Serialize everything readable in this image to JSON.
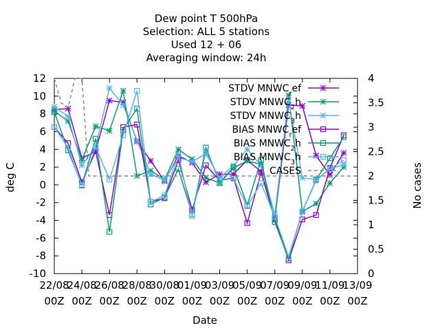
{
  "chart_data": {
    "type": "line",
    "title_lines": [
      "Dew point T 500hPa",
      "Selection: ALL      5 stations",
      "Used  12 + 06",
      "Averaging window: 24h"
    ],
    "xlabel": "Date",
    "ylabel": "deg C",
    "y2label": "No cases",
    "ylim": [
      -10,
      12
    ],
    "y2lim": [
      0,
      4
    ],
    "xlim": [
      0,
      22
    ],
    "yticks": [
      -10,
      -8,
      -6,
      -4,
      -2,
      0,
      2,
      4,
      6,
      8,
      10,
      12
    ],
    "y2ticks": [
      "0",
      "0.5",
      "1",
      "1.5",
      "2",
      "2.5",
      "3",
      "3.5",
      "4"
    ],
    "xticks": [
      {
        "x": 0,
        "line1": "22/08",
        "line2": "00Z"
      },
      {
        "x": 2,
        "line1": "24/08",
        "line2": "00Z"
      },
      {
        "x": 4,
        "line1": "26/08",
        "line2": "00Z"
      },
      {
        "x": 6,
        "line1": "28/08",
        "line2": "00Z"
      },
      {
        "x": 8,
        "line1": "30/08",
        "line2": "00Z"
      },
      {
        "x": 10,
        "line1": "01/09",
        "line2": "00Z"
      },
      {
        "x": 12,
        "line1": "03/09",
        "line2": "00Z"
      },
      {
        "x": 14,
        "line1": "05/09",
        "line2": "00Z"
      },
      {
        "x": 16,
        "line1": "07/09",
        "line2": "00Z"
      },
      {
        "x": 18,
        "line1": "09/09",
        "line2": "00Z"
      },
      {
        "x": 20,
        "line1": "11/09",
        "line2": "00Z"
      },
      {
        "x": 22,
        "line1": "13/09",
        "line2": "00Z"
      }
    ],
    "x": [
      0,
      1,
      2,
      3,
      4,
      5,
      6,
      7,
      8,
      9,
      10,
      11,
      12,
      13,
      14,
      15,
      16,
      17,
      18,
      19,
      20,
      21
    ],
    "legend_position": "top-right",
    "series": [
      {
        "name": "STDV MNWC",
        "sub": "r",
        "tail": "ef",
        "color": "#9400d3",
        "marker": "star",
        "values": [
          8.5,
          8.6,
          3.0,
          3.8,
          9.5,
          9.3,
          4.9,
          2.7,
          0.4,
          3.3,
          2.5,
          0.3,
          1.2,
          1.2,
          2.8,
          1.5,
          -3.9,
          9.0,
          8.9,
          3.3,
          1.1,
          3.6
        ]
      },
      {
        "name": "STDV MNWC",
        "sub": "2",
        "tail": "h",
        "color": "#009e73",
        "marker": "star",
        "values": [
          8.3,
          7.2,
          2.8,
          6.6,
          6.1,
          10.6,
          1.0,
          1.6,
          0.6,
          4.0,
          2.9,
          0.8,
          0.2,
          1.9,
          2.7,
          2.3,
          -4.0,
          10.1,
          -3.0,
          -2.1,
          0.2,
          2.0
        ]
      },
      {
        "name": "STDV MNWC",
        "sub": "3",
        "tail": "h",
        "color": "#56b4e9",
        "marker": "star",
        "values": [
          8.8,
          7.7,
          2.2,
          4.3,
          10.9,
          9.0,
          5.0,
          1.2,
          0.5,
          3.1,
          2.6,
          3.5,
          0.8,
          2.2,
          4.0,
          2.2,
          -3.3,
          9.6,
          0.8,
          0.6,
          1.8,
          2.3
        ]
      },
      {
        "name": "BIAS MNWC",
        "sub": "r",
        "tail": "ef",
        "color": "#9400d3",
        "marker": "square",
        "values": [
          6.5,
          4.7,
          0.3,
          3.8,
          -3.4,
          6.5,
          6.8,
          -1.9,
          -1.5,
          2.8,
          -2.8,
          2.2,
          0.5,
          0.8,
          -4.3,
          1.4,
          -3.8,
          -8.5,
          -3.9,
          -3.4,
          1.9,
          5.6
        ]
      },
      {
        "name": "BIAS MNWC",
        "sub": "2",
        "tail": "h",
        "color": "#009e73",
        "marker": "square",
        "values": [
          8.2,
          3.9,
          0.0,
          5.2,
          -5.3,
          6.2,
          8.6,
          -2.2,
          -1.4,
          1.8,
          -3.3,
          4.2,
          0.2,
          2.0,
          -2.3,
          2.8,
          -4.2,
          -8.3,
          -3.0,
          0.6,
          3.0,
          5.4
        ]
      },
      {
        "name": "BIAS MNWC",
        "sub": "3",
        "tail": "h",
        "color": "#56b4e9",
        "marker": "square",
        "values": [
          6.5,
          4.2,
          -0.1,
          4.3,
          0.6,
          5.6,
          10.6,
          -1.9,
          -1.2,
          3.4,
          -3.5,
          3.8,
          0.5,
          0.7,
          -2.4,
          0.2,
          -3.6,
          -8.1,
          -3.0,
          0.5,
          1.8,
          2.8
        ]
      },
      {
        "name": "CASES",
        "color": "#888888",
        "marker": "none",
        "dashed": true,
        "axis": "y2",
        "x": [
          0,
          0.5,
          1,
          1.5,
          2,
          2.5,
          3,
          22
        ],
        "values": [
          4.0,
          3.5,
          3.4,
          4.0,
          4.0,
          2.0,
          2.0,
          2.0
        ]
      }
    ]
  }
}
